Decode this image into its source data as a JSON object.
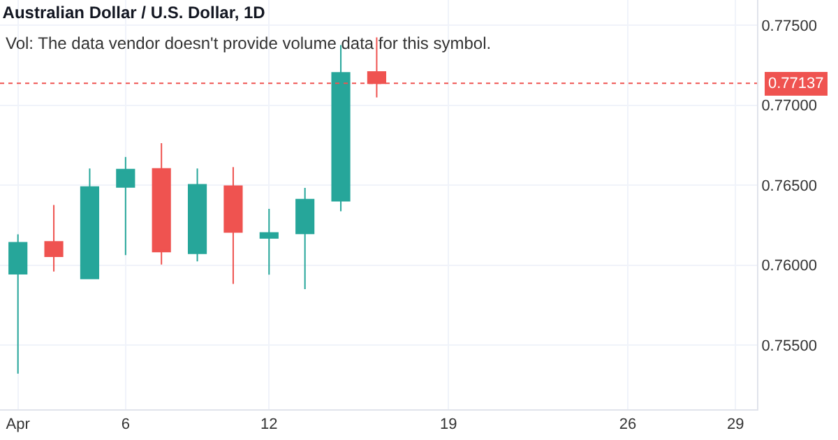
{
  "chart_data": {
    "type": "candlestick",
    "title": "Australian Dollar / U.S. Dollar, 1D",
    "annotations": [
      "Vol: The data vendor doesn't provide volume data for this symbol."
    ],
    "categories": [
      "Apr",
      null,
      null,
      "6",
      null,
      null,
      null,
      "12",
      null,
      null,
      null,
      null,
      "19",
      null,
      null,
      null,
      null,
      "26",
      null,
      null,
      "29"
    ],
    "ohlc": [
      [
        0.75946,
        0.76193,
        0.75323,
        0.76141
      ],
      [
        0.76146,
        0.76376,
        0.75961,
        0.76056
      ],
      [
        0.75917,
        0.76604,
        0.75917,
        0.76489
      ],
      [
        0.76489,
        0.76676,
        0.76063,
        0.76598
      ],
      [
        0.76602,
        0.76763,
        0.76004,
        0.76085
      ],
      [
        0.76074,
        0.76604,
        0.76024,
        0.76503
      ],
      [
        0.76494,
        0.76613,
        0.75883,
        0.76207
      ],
      [
        0.7617,
        0.76352,
        0.75941,
        0.76202
      ],
      [
        0.76198,
        0.76483,
        0.7585,
        0.7641
      ],
      [
        0.76402,
        0.77376,
        0.76337,
        0.77202
      ],
      [
        0.77207,
        0.77424,
        0.77048,
        0.77137
      ],
      null,
      null,
      null,
      null,
      null,
      null,
      null,
      null,
      null,
      null
    ],
    "colors": [
      "#26a69a",
      "#ef5350",
      "#26a69a",
      "#26a69a",
      "#ef5350",
      "#26a69a",
      "#ef5350",
      "#26a69a",
      "#26a69a",
      "#26a69a",
      "#ef5350",
      null,
      null,
      null,
      null,
      null,
      null,
      null,
      null,
      null,
      null
    ],
    "ylim": [
      0.751,
      0.77657
    ],
    "yticks": [
      {
        "value": 0.755,
        "label": "0.75500"
      },
      {
        "value": 0.76,
        "label": "0.76000"
      },
      {
        "value": 0.765,
        "label": "0.76500"
      },
      {
        "value": 0.77,
        "label": "0.77000"
      },
      {
        "value": 0.775,
        "label": "0.77500"
      }
    ],
    "ref_lines": [
      {
        "axis": "y",
        "value": 0.77137,
        "label": "0.77137",
        "color": "#ef5350",
        "line_style": "dotted"
      }
    ],
    "grid": true
  }
}
